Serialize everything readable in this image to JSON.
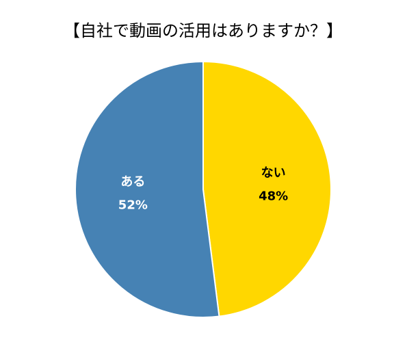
{
  "chart_data": {
    "type": "pie",
    "title": "【自社で動画の活用はありますか？】",
    "categories": [
      "ない",
      "ある"
    ],
    "values": [
      48,
      52
    ],
    "value_labels": [
      "48%",
      "52%"
    ],
    "colors": [
      "#ffd700",
      "#4682b4"
    ],
    "label_colors": [
      "#000000",
      "#ffffff"
    ]
  }
}
